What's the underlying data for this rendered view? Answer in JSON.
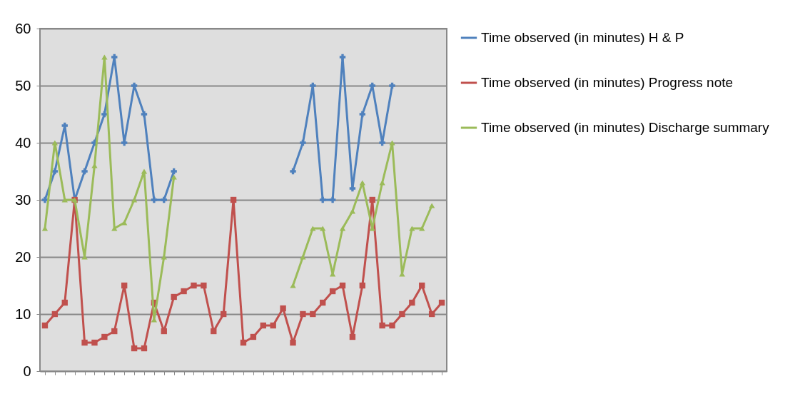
{
  "chart_data": {
    "type": "line",
    "categories": [
      null,
      null,
      null,
      null,
      null,
      null,
      null,
      null,
      null,
      null,
      null,
      null,
      null,
      null,
      null,
      null,
      null,
      null,
      null,
      null,
      null,
      null,
      null,
      null,
      null,
      null,
      null,
      null,
      null,
      null,
      null,
      null,
      null,
      null,
      null,
      null,
      null,
      null,
      null,
      null,
      null
    ],
    "series": [
      {
        "name": "Time observed (in minutes) H & P",
        "color": "#4f81bd",
        "marker": "cross",
        "values": [
          30,
          35,
          43,
          30,
          35,
          40,
          45,
          55,
          40,
          50,
          45,
          30,
          30,
          35,
          null,
          null,
          null,
          null,
          null,
          null,
          null,
          null,
          null,
          null,
          null,
          35,
          40,
          50,
          30,
          30,
          55,
          32,
          45,
          50,
          40,
          50,
          null,
          null,
          null,
          null,
          null
        ]
      },
      {
        "name": "Time observed (in minutes) Progress note",
        "color": "#c0504d",
        "marker": "square",
        "values": [
          8,
          10,
          12,
          30,
          5,
          5,
          6,
          7,
          15,
          4,
          4,
          12,
          7,
          13,
          14,
          15,
          15,
          7,
          10,
          30,
          5,
          6,
          8,
          8,
          11,
          5,
          10,
          10,
          12,
          14,
          15,
          6,
          15,
          30,
          8,
          8,
          10,
          12,
          15,
          10,
          12
        ]
      },
      {
        "name": "Time observed (in minutes) Discharge summary",
        "color": "#9bbb59",
        "marker": "triangle",
        "values": [
          25,
          40,
          30,
          30,
          20,
          36,
          55,
          25,
          26,
          30,
          35,
          9,
          20,
          34,
          null,
          null,
          null,
          null,
          null,
          null,
          null,
          null,
          null,
          null,
          null,
          15,
          20,
          25,
          25,
          17,
          25,
          28,
          33,
          25,
          33,
          40,
          17,
          25,
          25,
          29,
          null
        ]
      }
    ],
    "ylim": [
      0,
      60
    ],
    "yticks": [
      0,
      10,
      20,
      30,
      40,
      50,
      60
    ],
    "grid": "y",
    "legend": "right",
    "line_style": "solid"
  }
}
